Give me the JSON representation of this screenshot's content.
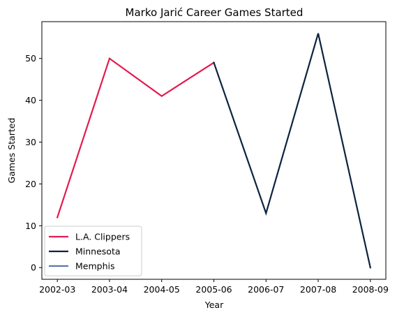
{
  "chart_data": {
    "type": "line",
    "title": "Marko Jarić Career Games Started",
    "xlabel": "Year",
    "ylabel": "Games Started",
    "categories": [
      "2002-03",
      "2003-04",
      "2004-05",
      "2005-06",
      "2006-07",
      "2007-08",
      "2008-09"
    ],
    "ylim": [
      -2.8,
      58.8
    ],
    "yticks": [
      0,
      10,
      20,
      30,
      40,
      50
    ],
    "grid": false,
    "legend_position": "lower-left",
    "series": [
      {
        "name": "L.A. Clippers",
        "color": "#E31A4E",
        "points": [
          [
            0,
            12
          ],
          [
            1,
            50
          ],
          [
            2,
            41
          ],
          [
            3,
            49
          ]
        ]
      },
      {
        "name": "Minnesota",
        "color": "#0C233F",
        "points": [
          [
            3,
            49
          ],
          [
            4,
            13
          ],
          [
            5,
            56
          ],
          [
            6,
            0
          ]
        ]
      },
      {
        "name": "Memphis",
        "color": "#5D76A9",
        "points": []
      }
    ]
  }
}
